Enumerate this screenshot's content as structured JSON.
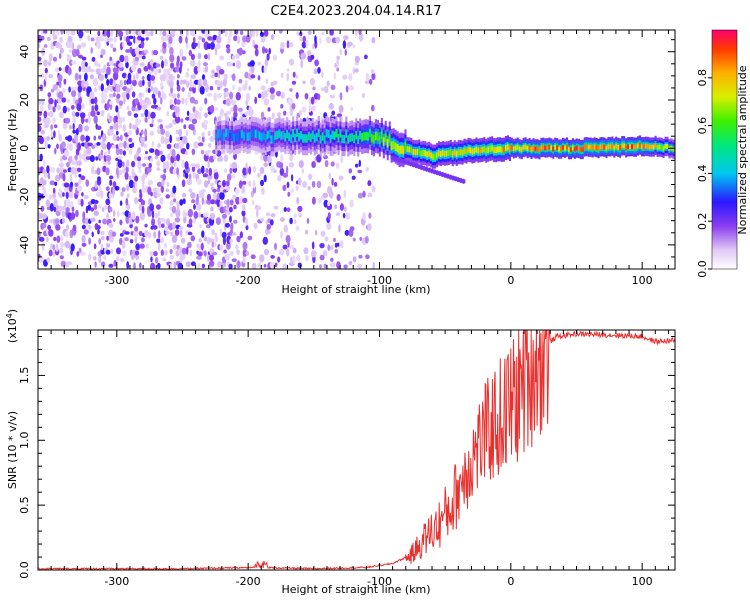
{
  "title": "C2E4.2023.204.04.14.R17",
  "chart_data": [
    {
      "type": "heatmap",
      "xlabel": "Height of straight line (km)",
      "ylabel": "Frequency (Hz)",
      "xlim": [
        -360,
        125
      ],
      "ylim": [
        -50,
        49
      ],
      "xticks": [
        -300,
        -200,
        -100,
        0,
        100
      ],
      "yticks": [
        -40,
        -20,
        0,
        20,
        40
      ],
      "colorbar": {
        "label": "Normalized spectral amplitude",
        "range": [
          0,
          1
        ],
        "ticks": [
          "0.0",
          "0.2",
          "0.4",
          "0.6",
          "0.8"
        ],
        "colormap": "rainbow (white → violet → blue → cyan → green → yellow → red)"
      },
      "ridge_frequency_hz": [
        {
          "x": -220,
          "y": 5
        },
        {
          "x": -150,
          "y": 5
        },
        {
          "x": -100,
          "y": 5
        },
        {
          "x": -85,
          "y": 0
        },
        {
          "x": -60,
          "y": -3
        },
        {
          "x": -30,
          "y": -1
        },
        {
          "x": 0,
          "y": 0
        },
        {
          "x": 50,
          "y": 0
        },
        {
          "x": 100,
          "y": 1
        },
        {
          "x": 125,
          "y": 0
        }
      ],
      "ridge_peak_amplitude": [
        {
          "x": -220,
          "y": 0.4
        },
        {
          "x": -120,
          "y": 0.55
        },
        {
          "x": -100,
          "y": 0.75
        },
        {
          "x": -60,
          "y": 0.8
        },
        {
          "x": -20,
          "y": 0.85
        },
        {
          "x": 20,
          "y": 0.95
        },
        {
          "x": 95,
          "y": 1.0
        },
        {
          "x": 125,
          "y": 0.7
        }
      ],
      "noise_extent_km": [
        -360,
        -105
      ]
    },
    {
      "type": "line",
      "xlabel": "Height of straight line (km)",
      "ylabel": "SNR (10 * v/v)",
      "y_multiplier": "(x10",
      "y_multiplier_exp": "4",
      "y_multiplier_close": ")",
      "xlim": [
        -360,
        125
      ],
      "ylim": [
        0,
        1.85
      ],
      "xticks": [
        -300,
        -200,
        -100,
        0,
        100
      ],
      "yticks": [
        "0.0",
        "0.5",
        "1.0",
        "1.5"
      ],
      "color": "#e8312f",
      "series": [
        {
          "values": [
            {
              "x": -360,
              "y": 0.01
            },
            {
              "x": -250,
              "y": 0.01
            },
            {
              "x": -190,
              "y": 0.02
            },
            {
              "x": -150,
              "y": 0.01
            },
            {
              "x": -110,
              "y": 0.02
            },
            {
              "x": -90,
              "y": 0.05
            },
            {
              "x": -75,
              "y": 0.12
            },
            {
              "x": -65,
              "y": 0.25
            },
            {
              "x": -55,
              "y": 0.35
            },
            {
              "x": -45,
              "y": 0.5
            },
            {
              "x": -35,
              "y": 0.75
            },
            {
              "x": -25,
              "y": 0.95
            },
            {
              "x": -15,
              "y": 1.1
            },
            {
              "x": -5,
              "y": 1.2
            },
            {
              "x": 5,
              "y": 1.35
            },
            {
              "x": 15,
              "y": 1.55
            },
            {
              "x": 25,
              "y": 1.72
            },
            {
              "x": 35,
              "y": 1.8
            },
            {
              "x": 50,
              "y": 1.82
            },
            {
              "x": 80,
              "y": 1.81
            },
            {
              "x": 100,
              "y": 1.8
            },
            {
              "x": 110,
              "y": 1.76
            },
            {
              "x": 125,
              "y": 1.77
            }
          ]
        }
      ]
    }
  ],
  "colors": {
    "line": "#e8312f",
    "axis": "#000000",
    "background": "#ffffff"
  }
}
